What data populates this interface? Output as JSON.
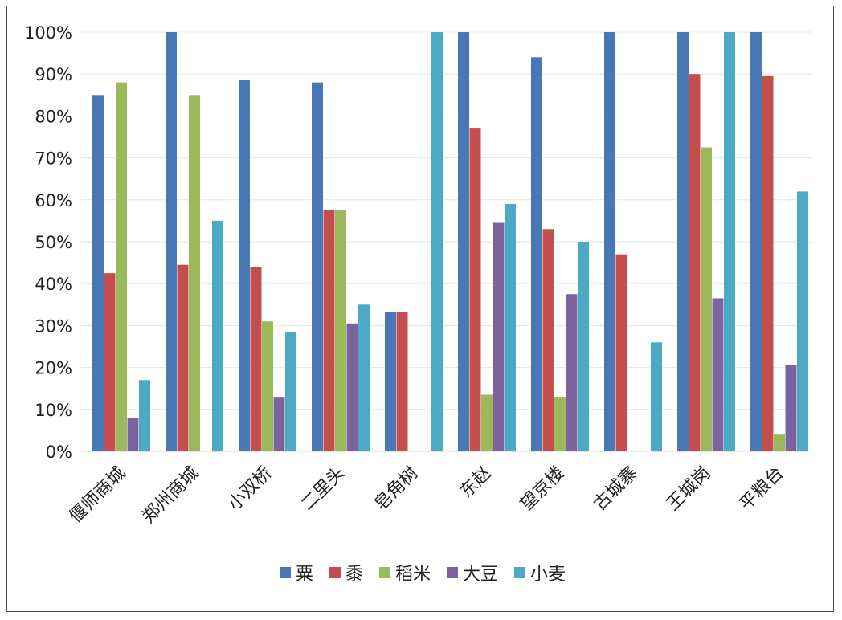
{
  "chart_data": {
    "type": "bar",
    "categories": [
      "偃师商城",
      "郑州商城",
      "小双桥",
      "二里头",
      "皂角树",
      "东赵",
      "望京楼",
      "古城寨",
      "王城岗",
      "平粮台"
    ],
    "series": [
      {
        "name": "粟",
        "color": "#4a77b6",
        "values": [
          85,
          100,
          88.5,
          88,
          33.3,
          100,
          94,
          100,
          100,
          100
        ]
      },
      {
        "name": "黍",
        "color": "#c44e4d",
        "values": [
          42.5,
          44.5,
          44,
          57.5,
          33.3,
          77,
          53,
          47,
          90,
          89.5
        ]
      },
      {
        "name": "稻米",
        "color": "#9ab95a",
        "values": [
          88,
          85,
          31,
          57.5,
          0,
          13.5,
          13,
          0,
          72.5,
          4
        ]
      },
      {
        "name": "大豆",
        "color": "#7d62a0",
        "values": [
          8,
          0,
          13,
          30.5,
          0,
          54.5,
          37.5,
          0,
          36.5,
          20.5
        ]
      },
      {
        "name": "小麦",
        "color": "#4ba9c4",
        "values": [
          17,
          55,
          28.5,
          35,
          100,
          59,
          50,
          26,
          100,
          62
        ]
      }
    ],
    "y_ticks": [
      "0%",
      "10%",
      "20%",
      "30%",
      "40%",
      "50%",
      "60%",
      "70%",
      "80%",
      "90%",
      "100%"
    ],
    "ylim": [
      0,
      100
    ],
    "title": "",
    "xlabel": "",
    "ylabel": "",
    "legend_position": "bottom-center",
    "grid": true
  }
}
